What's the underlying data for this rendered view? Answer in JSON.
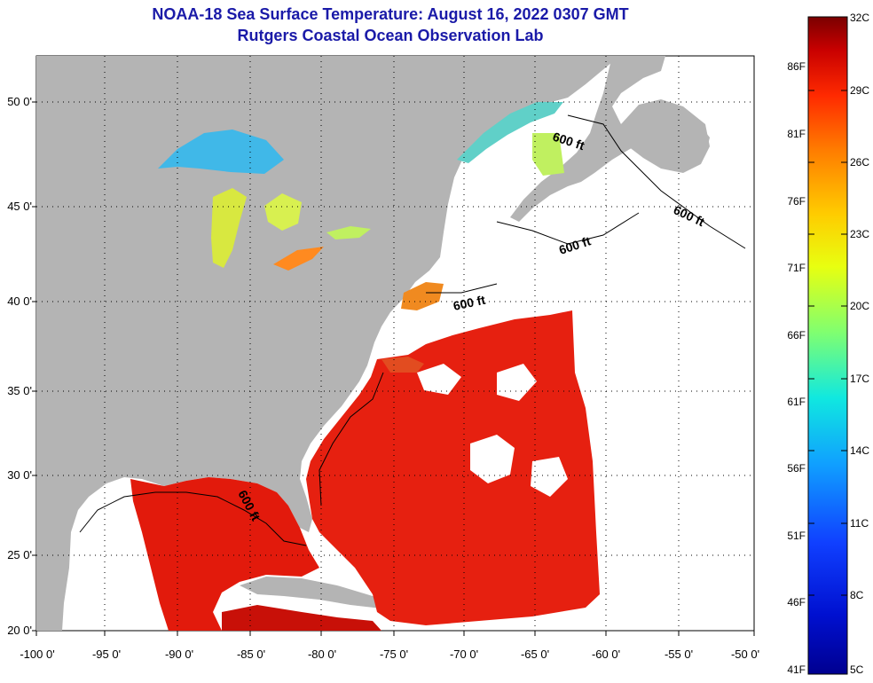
{
  "title": {
    "line1": "NOAA-18 Sea Surface Temperature:  August 16, 2022 0307 GMT",
    "line2": "Rutgers Coastal Ocean Observation Lab"
  },
  "axes": {
    "y_labels": [
      "50 0'",
      "45 0'",
      "40 0'",
      "35 0'",
      "30 0'",
      "25 0'",
      "20 0'"
    ],
    "x_labels": [
      "-100 0'",
      "-95 0'",
      "-90 0'",
      "-85 0'",
      "-80 0'",
      "-75 0'",
      "-70 0'",
      "-65 0'",
      "-60 0'",
      "-55 0'",
      "-50 0'"
    ]
  },
  "contour_label": "600 ft",
  "colorbar": {
    "fahrenheit": [
      "86F",
      "81F",
      "76F",
      "71F",
      "66F",
      "61F",
      "56F",
      "51F",
      "46F",
      "41F"
    ],
    "celsius": [
      "32C",
      "29C",
      "26C",
      "23C",
      "20C",
      "17C",
      "14C",
      "11C",
      "8C",
      "5C"
    ],
    "colors": [
      "#7a0000",
      "#c80000",
      "#ff2a00",
      "#ff7a00",
      "#ffcc00",
      "#e8ff10",
      "#80ff70",
      "#10e8e0",
      "#10a0ff",
      "#1040ff",
      "#0010d0",
      "#000090"
    ]
  },
  "land_color": "#b4b4b4",
  "sea_color_warm": "#e62010"
}
